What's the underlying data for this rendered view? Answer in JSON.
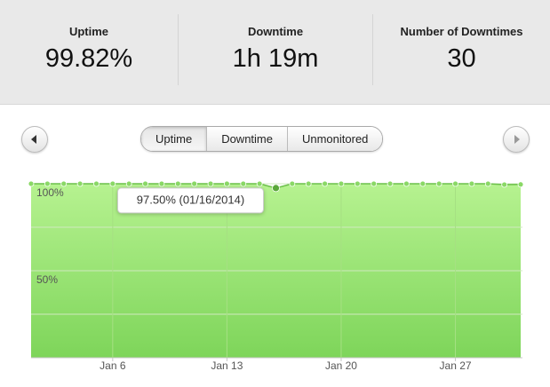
{
  "stats": [
    {
      "label": "Uptime",
      "value": "99.82%"
    },
    {
      "label": "Downtime",
      "value": "1h 19m"
    },
    {
      "label": "Number of Downtimes",
      "value": "30"
    }
  ],
  "tabs": {
    "items": [
      "Uptime",
      "Downtime",
      "Unmonitored"
    ],
    "active": 0
  },
  "chart_data": {
    "type": "area",
    "x": [
      1,
      2,
      3,
      4,
      5,
      6,
      7,
      8,
      9,
      10,
      11,
      12,
      13,
      14,
      15,
      16,
      17,
      18,
      19,
      20,
      21,
      22,
      23,
      24,
      25,
      26,
      27,
      28,
      29,
      30,
      31
    ],
    "series": [
      {
        "name": "Uptime",
        "color": "#6cc04a",
        "values": [
          100,
          100,
          100,
          100,
          100,
          100,
          100,
          100,
          100,
          100,
          100,
          100,
          100,
          100,
          100,
          97.5,
          100,
          100,
          100,
          100,
          100,
          100,
          100,
          100,
          100,
          100,
          100,
          100,
          100,
          99.5,
          99.6
        ]
      }
    ],
    "xlim": [
      1,
      31
    ],
    "xticks": [
      {
        "value": 6,
        "label": "Jan 6"
      },
      {
        "value": 13,
        "label": "Jan 13"
      },
      {
        "value": 20,
        "label": "Jan 20"
      },
      {
        "value": 27,
        "label": "Jan 27"
      }
    ],
    "ylim": [
      0,
      100
    ],
    "yticks": [
      {
        "value": 50,
        "label": "50%"
      },
      {
        "value": 100,
        "label": "100%"
      }
    ],
    "minor_yticks": [
      25,
      75
    ],
    "grid": true,
    "tooltip": {
      "index": 15,
      "text": "97.50% (01/16/2014)"
    }
  }
}
